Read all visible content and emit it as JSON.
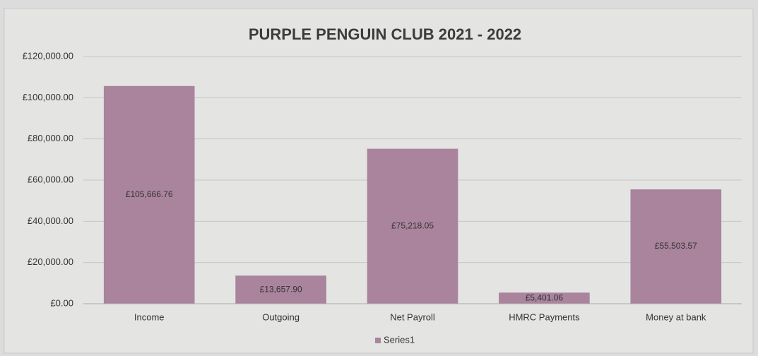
{
  "chart_data": {
    "type": "bar",
    "title": "PURPLE PENGUIN CLUB 2021 - 2022",
    "categories": [
      "Income",
      "Outgoing",
      "Net Payroll",
      "HMRC Payments",
      "Money at bank"
    ],
    "series": [
      {
        "name": "Series1",
        "color": "#a9849c",
        "values": [
          105666.76,
          13657.9,
          75218.05,
          5401.06,
          55503.57
        ],
        "value_labels": [
          "£105,666.76",
          "£13,657.90",
          "£75,218.05",
          "£5,401.06",
          "£55,503.57"
        ]
      }
    ],
    "ylim": [
      0,
      120000
    ],
    "yticks": [
      {
        "value": 0,
        "label": "£0.00"
      },
      {
        "value": 20000,
        "label": "£20,000.00"
      },
      {
        "value": 40000,
        "label": "£40,000.00"
      },
      {
        "value": 60000,
        "label": "£60,000.00"
      },
      {
        "value": 80000,
        "label": "£80,000.00"
      },
      {
        "value": 100000,
        "label": "£100,000.00"
      },
      {
        "value": 120000,
        "label": "£120,000.00"
      }
    ],
    "grid": true,
    "legend": "bottom"
  }
}
